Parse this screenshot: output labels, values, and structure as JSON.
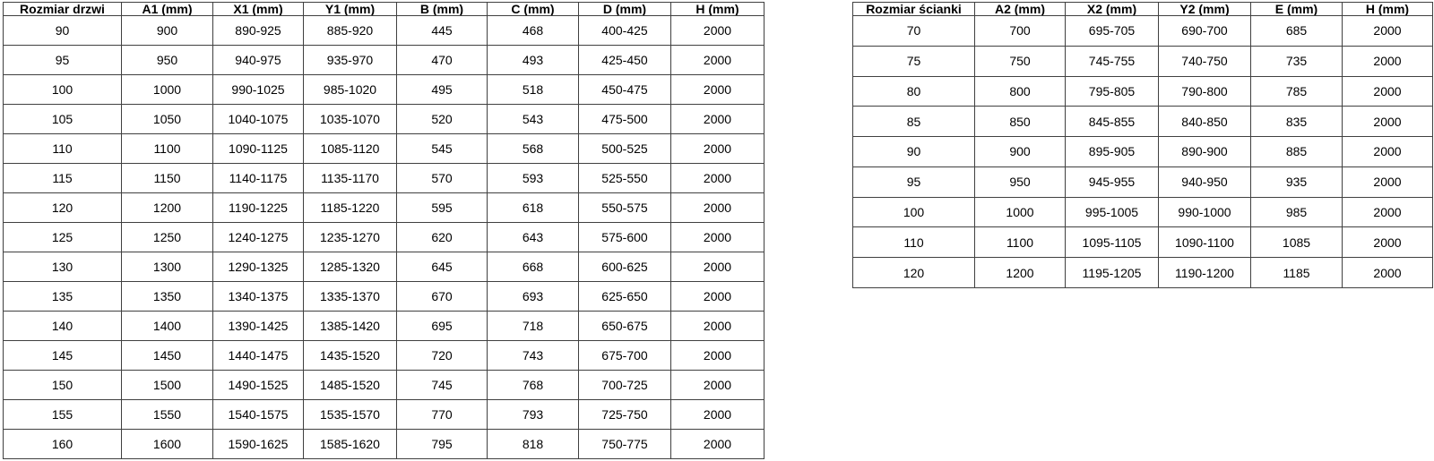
{
  "page": {
    "background_color": "#ffffff",
    "border_color": "#404040",
    "text_color": "#000000"
  },
  "chart_data": [
    {
      "type": "table",
      "name": "door-sizes",
      "title": "Rozmiar drzwi",
      "columns": [
        "Rozmiar drzwi",
        "A1 (mm)",
        "X1 (mm)",
        "Y1 (mm)",
        "B (mm)",
        "C (mm)",
        "D (mm)",
        "H (mm)"
      ],
      "rows": [
        [
          "90",
          "900",
          "890-925",
          "885-920",
          "445",
          "468",
          "400-425",
          "2000"
        ],
        [
          "95",
          "950",
          "940-975",
          "935-970",
          "470",
          "493",
          "425-450",
          "2000"
        ],
        [
          "100",
          "1000",
          "990-1025",
          "985-1020",
          "495",
          "518",
          "450-475",
          "2000"
        ],
        [
          "105",
          "1050",
          "1040-1075",
          "1035-1070",
          "520",
          "543",
          "475-500",
          "2000"
        ],
        [
          "110",
          "1100",
          "1090-1125",
          "1085-1120",
          "545",
          "568",
          "500-525",
          "2000"
        ],
        [
          "115",
          "1150",
          "1140-1175",
          "1135-1170",
          "570",
          "593",
          "525-550",
          "2000"
        ],
        [
          "120",
          "1200",
          "1190-1225",
          "1185-1220",
          "595",
          "618",
          "550-575",
          "2000"
        ],
        [
          "125",
          "1250",
          "1240-1275",
          "1235-1270",
          "620",
          "643",
          "575-600",
          "2000"
        ],
        [
          "130",
          "1300",
          "1290-1325",
          "1285-1320",
          "645",
          "668",
          "600-625",
          "2000"
        ],
        [
          "135",
          "1350",
          "1340-1375",
          "1335-1370",
          "670",
          "693",
          "625-650",
          "2000"
        ],
        [
          "140",
          "1400",
          "1390-1425",
          "1385-1420",
          "695",
          "718",
          "650-675",
          "2000"
        ],
        [
          "145",
          "1450",
          "1440-1475",
          "1435-1520",
          "720",
          "743",
          "675-700",
          "2000"
        ],
        [
          "150",
          "1500",
          "1490-1525",
          "1485-1520",
          "745",
          "768",
          "700-725",
          "2000"
        ],
        [
          "155",
          "1550",
          "1540-1575",
          "1535-1570",
          "770",
          "793",
          "725-750",
          "2000"
        ],
        [
          "160",
          "1600",
          "1590-1625",
          "1585-1620",
          "795",
          "818",
          "750-775",
          "2000"
        ]
      ]
    },
    {
      "type": "table",
      "name": "wall-sizes",
      "title": "Rozmiar ścianki",
      "columns": [
        "Rozmiar ścianki",
        "A2 (mm)",
        "X2 (mm)",
        "Y2 (mm)",
        "E (mm)",
        "H (mm)"
      ],
      "rows": [
        [
          "70",
          "700",
          "695-705",
          "690-700",
          "685",
          "2000"
        ],
        [
          "75",
          "750",
          "745-755",
          "740-750",
          "735",
          "2000"
        ],
        [
          "80",
          "800",
          "795-805",
          "790-800",
          "785",
          "2000"
        ],
        [
          "85",
          "850",
          "845-855",
          "840-850",
          "835",
          "2000"
        ],
        [
          "90",
          "900",
          "895-905",
          "890-900",
          "885",
          "2000"
        ],
        [
          "95",
          "950",
          "945-955",
          "940-950",
          "935",
          "2000"
        ],
        [
          "100",
          "1000",
          "995-1005",
          "990-1000",
          "985",
          "2000"
        ],
        [
          "110",
          "1100",
          "1095-1105",
          "1090-1100",
          "1085",
          "2000"
        ],
        [
          "120",
          "1200",
          "1195-1205",
          "1190-1200",
          "1185",
          "2000"
        ]
      ]
    }
  ]
}
